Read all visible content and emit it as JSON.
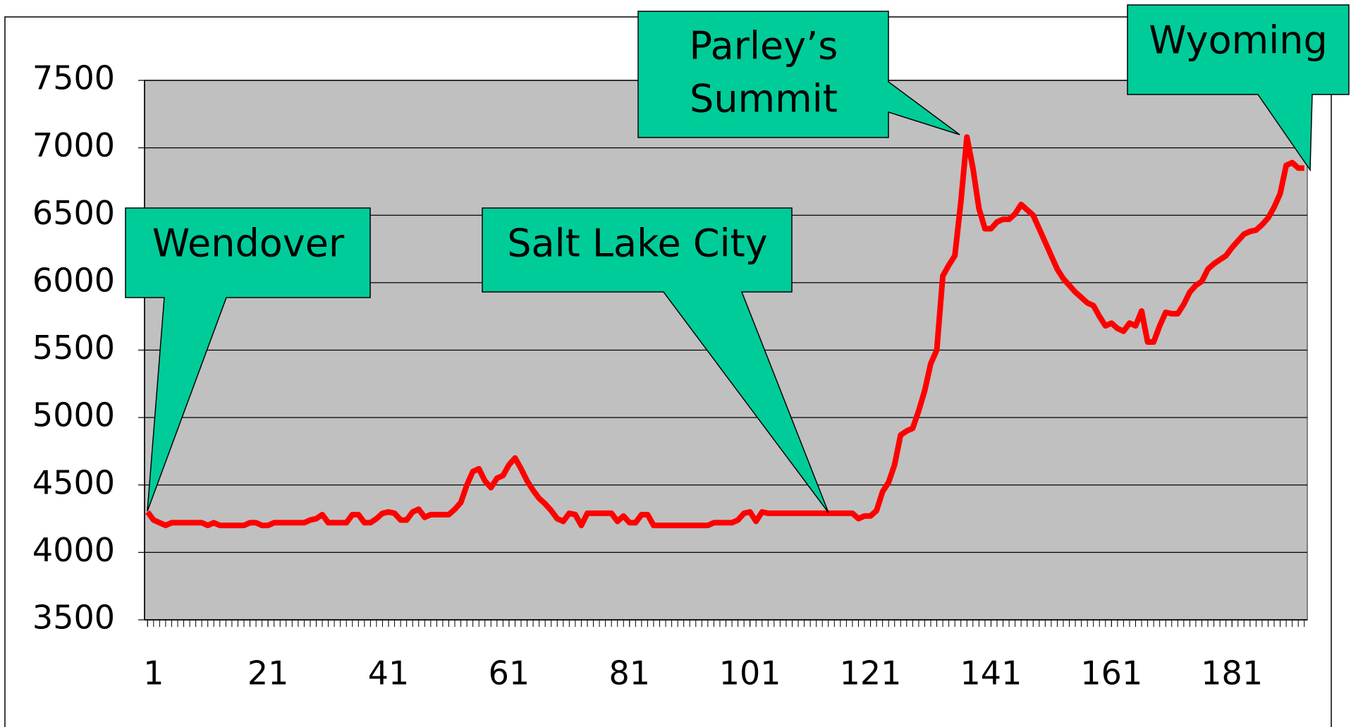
{
  "chart_data": {
    "type": "line",
    "x": [
      1,
      2,
      3,
      4,
      5,
      6,
      7,
      8,
      9,
      10,
      11,
      12,
      13,
      14,
      15,
      16,
      17,
      18,
      19,
      20,
      21,
      22,
      23,
      24,
      25,
      26,
      27,
      28,
      29,
      30,
      31,
      32,
      33,
      34,
      35,
      36,
      37,
      38,
      39,
      40,
      41,
      42,
      43,
      44,
      45,
      46,
      47,
      48,
      49,
      50,
      51,
      52,
      53,
      54,
      55,
      56,
      57,
      58,
      59,
      60,
      61,
      62,
      63,
      64,
      65,
      66,
      67,
      68,
      69,
      70,
      71,
      72,
      73,
      74,
      75,
      76,
      77,
      78,
      79,
      80,
      81,
      82,
      83,
      84,
      85,
      86,
      87,
      88,
      89,
      90,
      91,
      92,
      93,
      94,
      95,
      96,
      97,
      98,
      99,
      100,
      101,
      102,
      103,
      104,
      105,
      106,
      107,
      108,
      109,
      110,
      111,
      112,
      113,
      114,
      115,
      116,
      117,
      118,
      119,
      120,
      121,
      122,
      123,
      124,
      125,
      126,
      127,
      128,
      129,
      130,
      131,
      132,
      133,
      134,
      135,
      136,
      137,
      138,
      139,
      140,
      141,
      142,
      143,
      144,
      145,
      146,
      147,
      148,
      149,
      150,
      151,
      152,
      153,
      154,
      155,
      156,
      157,
      158,
      159,
      160,
      161,
      162,
      163,
      164,
      165,
      166,
      167,
      168,
      169,
      170,
      171,
      172,
      173,
      174,
      175,
      176,
      177,
      178,
      179,
      180,
      181,
      182,
      183,
      184,
      185,
      186,
      187,
      188,
      189,
      190,
      191,
      192,
      193
    ],
    "series": [
      {
        "color": "#ff0000",
        "values": [
          4300,
          4240,
          4220,
          4200,
          4220,
          4220,
          4220,
          4220,
          4220,
          4220,
          4200,
          4220,
          4200,
          4200,
          4200,
          4200,
          4200,
          4220,
          4220,
          4200,
          4200,
          4220,
          4220,
          4220,
          4220,
          4220,
          4220,
          4240,
          4250,
          4280,
          4220,
          4220,
          4220,
          4220,
          4280,
          4280,
          4220,
          4220,
          4250,
          4290,
          4300,
          4290,
          4240,
          4240,
          4300,
          4320,
          4260,
          4280,
          4280,
          4280,
          4280,
          4320,
          4370,
          4500,
          4600,
          4620,
          4530,
          4480,
          4550,
          4570,
          4650,
          4700,
          4620,
          4530,
          4460,
          4400,
          4360,
          4310,
          4250,
          4230,
          4290,
          4280,
          4200,
          4290,
          4290,
          4290,
          4290,
          4290,
          4230,
          4270,
          4220,
          4220,
          4280,
          4280,
          4200,
          4200,
          4200,
          4200,
          4200,
          4200,
          4200,
          4200,
          4200,
          4200,
          4220,
          4220,
          4220,
          4220,
          4240,
          4290,
          4300,
          4230,
          4300,
          4290,
          4290,
          4290,
          4290,
          4290,
          4290,
          4290,
          4290,
          4290,
          4290,
          4290,
          4290,
          4290,
          4290,
          4290,
          4250,
          4270,
          4270,
          4310,
          4450,
          4520,
          4650,
          4870,
          4900,
          4920,
          5050,
          5200,
          5400,
          5500,
          6050,
          6130,
          6200,
          6600,
          7080,
          6850,
          6550,
          6400,
          6400,
          6450,
          6470,
          6470,
          6510,
          6580,
          6540,
          6500,
          6400,
          6300,
          6200,
          6100,
          6030,
          5980,
          5930,
          5890,
          5850,
          5830,
          5750,
          5680,
          5700,
          5660,
          5640,
          5700,
          5680,
          5790,
          5560,
          5560,
          5680,
          5780,
          5770,
          5770,
          5840,
          5930,
          5980,
          6010,
          6100,
          6140,
          6170,
          6200,
          6260,
          6310,
          6360,
          6380,
          6390,
          6430,
          6480,
          6560,
          6660,
          6870,
          6890,
          6850,
          6850
        ]
      }
    ],
    "xlim": [
      0.5,
      193.5
    ],
    "xticks": [
      1,
      21,
      41,
      61,
      81,
      101,
      121,
      141,
      161,
      181
    ],
    "ylim": [
      3500,
      7500
    ],
    "yticks": [
      3500,
      4000,
      4500,
      5000,
      5500,
      6000,
      6500,
      7000,
      7500
    ],
    "grid": true,
    "annotations": [
      {
        "lines": [
          "Wendover"
        ]
      },
      {
        "lines": [
          "Salt Lake City"
        ]
      },
      {
        "lines": [
          "Parley’s",
          "Summit"
        ]
      },
      {
        "lines": [
          "Wyoming"
        ]
      }
    ]
  }
}
